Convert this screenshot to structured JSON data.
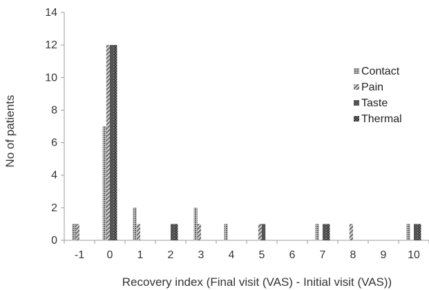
{
  "chart_data": {
    "type": "bar",
    "xlabel": "Recovery index (Final visit (VAS) - Initial visit (VAS))",
    "ylabel": "No of patients",
    "ylim": [
      0,
      14
    ],
    "yticks": [
      "0",
      "2",
      "4",
      "6",
      "8",
      "10",
      "12",
      "14"
    ],
    "categories": [
      "-1",
      "0",
      "1",
      "2",
      "3",
      "4",
      "5",
      "6",
      "7",
      "8",
      "9",
      "10"
    ],
    "legend_position": "right",
    "grid": false,
    "series": [
      {
        "name": "Contact",
        "color": "#7a7a7a",
        "pattern": "dots",
        "values": [
          1,
          7,
          2,
          0,
          2,
          1,
          0,
          0,
          1,
          0,
          0,
          1
        ]
      },
      {
        "name": "Pain",
        "color": "#8c8c8c",
        "pattern": "diagonal",
        "values": [
          1,
          12,
          1,
          0,
          1,
          0,
          1,
          0,
          0,
          1,
          0,
          0
        ]
      },
      {
        "name": "Taste",
        "color": "#555555",
        "pattern": "solid",
        "values": [
          0,
          12,
          0,
          1,
          0,
          0,
          1,
          0,
          1,
          0,
          0,
          1
        ]
      },
      {
        "name": "Thermal",
        "color": "#3a3a3a",
        "pattern": "checker",
        "values": [
          0,
          12,
          0,
          1,
          0,
          0,
          0,
          0,
          1,
          0,
          0,
          1
        ]
      }
    ]
  }
}
